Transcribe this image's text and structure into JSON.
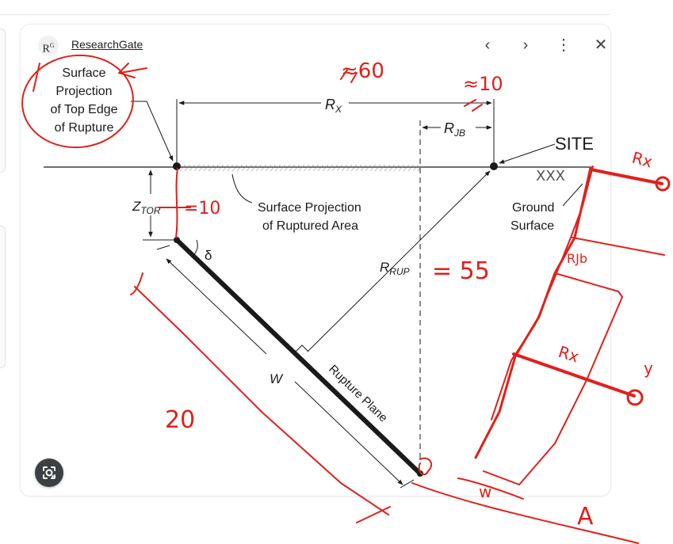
{
  "viewer": {
    "source_label": "ResearchGate",
    "logo_letter": "R",
    "logo_sup": "G",
    "prev_glyph": "‹",
    "next_glyph": "›",
    "more_glyph": "⋮",
    "close_glyph": "✕",
    "lens_icon": "google-lens-icon"
  },
  "diagram": {
    "labels": {
      "surface_projection_top_edge": [
        "Surface",
        "Projection",
        "of Top Edge",
        "of Rupture"
      ],
      "rx": "R",
      "rx_sub": "X",
      "rjb": "R",
      "rjb_sub": "JB",
      "site": "SITE",
      "ztor": "Z",
      "ztor_sub": "TOR",
      "surface_projection_ruptured": [
        "Surface Projection",
        "of Ruptured Area"
      ],
      "ground_surface": [
        "Ground",
        "Surface"
      ],
      "delta": "δ",
      "rrup": "R",
      "rrup_sub": "RUP",
      "w": "W",
      "rupture_plane": "Rupture Plane"
    },
    "annotations": {
      "rx_value": "≈60",
      "rjb_value": "≈10",
      "ztor_value": "=10",
      "rrup_value": "= 55",
      "width_value": "20",
      "rx_note": "Rx",
      "rjb_note": "RJb",
      "rx_note_2": "Rx",
      "y_note": "y",
      "w_note": "w",
      "a_note": "A"
    },
    "colors": {
      "ink": "#1a1a1a",
      "annotation": "#e0201b",
      "hatch": "#7a7a7a"
    }
  }
}
